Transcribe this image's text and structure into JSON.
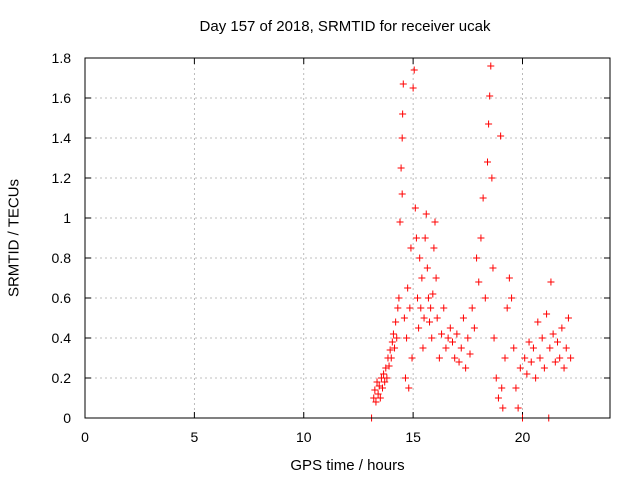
{
  "chart_data": {
    "type": "scatter",
    "title": "Day 157 of 2018, SRMTID for receiver ucak",
    "xlabel": "GPS time / hours",
    "ylabel": "SRMTID / TECUs",
    "xlim": [
      0,
      24
    ],
    "ylim": [
      0,
      1.8
    ],
    "xticks": [
      0,
      5,
      10,
      15,
      20
    ],
    "yticks": [
      0,
      0.2,
      0.4,
      0.6,
      0.8,
      1,
      1.2,
      1.4,
      1.6,
      1.8
    ],
    "xtick_labels": [
      "0",
      "5",
      "10",
      "15",
      "20"
    ],
    "ytick_labels": [
      "0",
      "0.2",
      "0.4",
      "0.6",
      "0.8",
      "1",
      "1.2",
      "1.4",
      "1.6",
      "1.8"
    ],
    "grid": true,
    "marker": "+",
    "color": "#ff0000",
    "series": [
      {
        "name": "SRMTID",
        "points": [
          [
            13.1,
            0.0
          ],
          [
            13.2,
            0.1
          ],
          [
            13.25,
            0.14
          ],
          [
            13.3,
            0.08
          ],
          [
            13.35,
            0.18
          ],
          [
            13.4,
            0.12
          ],
          [
            13.45,
            0.16
          ],
          [
            13.5,
            0.1
          ],
          [
            13.55,
            0.2
          ],
          [
            13.6,
            0.15
          ],
          [
            13.65,
            0.22
          ],
          [
            13.7,
            0.18
          ],
          [
            13.75,
            0.25
          ],
          [
            13.8,
            0.2
          ],
          [
            13.85,
            0.3
          ],
          [
            13.9,
            0.26
          ],
          [
            13.95,
            0.34
          ],
          [
            14.0,
            0.3
          ],
          [
            14.05,
            0.38
          ],
          [
            14.1,
            0.42
          ],
          [
            14.15,
            0.35
          ],
          [
            14.2,
            0.48
          ],
          [
            14.25,
            0.4
          ],
          [
            14.3,
            0.55
          ],
          [
            14.35,
            0.6
          ],
          [
            14.4,
            0.98
          ],
          [
            14.45,
            1.25
          ],
          [
            14.5,
            1.4
          ],
          [
            14.52,
            1.52
          ],
          [
            14.55,
            1.67
          ],
          [
            14.5,
            1.12
          ],
          [
            14.6,
            0.5
          ],
          [
            14.65,
            0.2
          ],
          [
            14.7,
            0.4
          ],
          [
            14.75,
            0.65
          ],
          [
            14.8,
            0.15
          ],
          [
            14.85,
            0.55
          ],
          [
            14.9,
            0.85
          ],
          [
            14.95,
            0.3
          ],
          [
            15.0,
            1.65
          ],
          [
            15.05,
            1.74
          ],
          [
            15.1,
            1.05
          ],
          [
            15.15,
            0.9
          ],
          [
            15.2,
            0.6
          ],
          [
            15.25,
            0.45
          ],
          [
            15.3,
            0.8
          ],
          [
            15.35,
            0.55
          ],
          [
            15.4,
            0.7
          ],
          [
            15.45,
            0.35
          ],
          [
            15.5,
            0.5
          ],
          [
            15.55,
            0.9
          ],
          [
            15.6,
            1.02
          ],
          [
            15.65,
            0.75
          ],
          [
            15.7,
            0.6
          ],
          [
            15.75,
            0.48
          ],
          [
            15.8,
            0.55
          ],
          [
            15.85,
            0.4
          ],
          [
            15.9,
            0.62
          ],
          [
            15.95,
            0.85
          ],
          [
            16.0,
            0.98
          ],
          [
            16.05,
            0.7
          ],
          [
            16.1,
            0.5
          ],
          [
            16.2,
            0.3
          ],
          [
            16.3,
            0.42
          ],
          [
            16.4,
            0.55
          ],
          [
            16.5,
            0.35
          ],
          [
            16.6,
            0.4
          ],
          [
            16.7,
            0.45
          ],
          [
            16.8,
            0.38
          ],
          [
            16.9,
            0.3
          ],
          [
            17.0,
            0.42
          ],
          [
            17.1,
            0.28
          ],
          [
            17.2,
            0.35
          ],
          [
            17.3,
            0.5
          ],
          [
            17.4,
            0.25
          ],
          [
            17.5,
            0.4
          ],
          [
            17.6,
            0.32
          ],
          [
            17.7,
            0.55
          ],
          [
            17.8,
            0.45
          ],
          [
            17.9,
            0.8
          ],
          [
            18.0,
            0.68
          ],
          [
            18.1,
            0.9
          ],
          [
            18.2,
            1.1
          ],
          [
            18.3,
            0.6
          ],
          [
            18.4,
            1.28
          ],
          [
            18.45,
            1.47
          ],
          [
            18.5,
            1.61
          ],
          [
            18.55,
            1.76
          ],
          [
            18.6,
            1.2
          ],
          [
            18.65,
            0.75
          ],
          [
            18.7,
            0.4
          ],
          [
            18.8,
            0.2
          ],
          [
            18.9,
            0.1
          ],
          [
            19.0,
            1.41
          ],
          [
            19.05,
            0.15
          ],
          [
            19.1,
            0.05
          ],
          [
            19.2,
            0.3
          ],
          [
            19.3,
            0.55
          ],
          [
            19.4,
            0.7
          ],
          [
            19.5,
            0.6
          ],
          [
            19.6,
            0.35
          ],
          [
            19.7,
            0.15
          ],
          [
            19.8,
            0.05
          ],
          [
            19.9,
            0.25
          ],
          [
            20.0,
            0.0
          ],
          [
            20.1,
            0.3
          ],
          [
            20.2,
            0.22
          ],
          [
            20.3,
            0.38
          ],
          [
            20.4,
            0.28
          ],
          [
            20.5,
            0.35
          ],
          [
            20.6,
            0.2
          ],
          [
            20.7,
            0.48
          ],
          [
            20.8,
            0.3
          ],
          [
            20.9,
            0.4
          ],
          [
            21.0,
            0.25
          ],
          [
            21.1,
            0.52
          ],
          [
            21.2,
            0.0
          ],
          [
            21.25,
            0.35
          ],
          [
            21.3,
            0.68
          ],
          [
            21.4,
            0.42
          ],
          [
            21.5,
            0.28
          ],
          [
            21.6,
            0.38
          ],
          [
            21.7,
            0.3
          ],
          [
            21.8,
            0.45
          ],
          [
            21.9,
            0.25
          ],
          [
            22.0,
            0.35
          ],
          [
            22.1,
            0.5
          ],
          [
            22.2,
            0.3
          ]
        ]
      }
    ]
  }
}
